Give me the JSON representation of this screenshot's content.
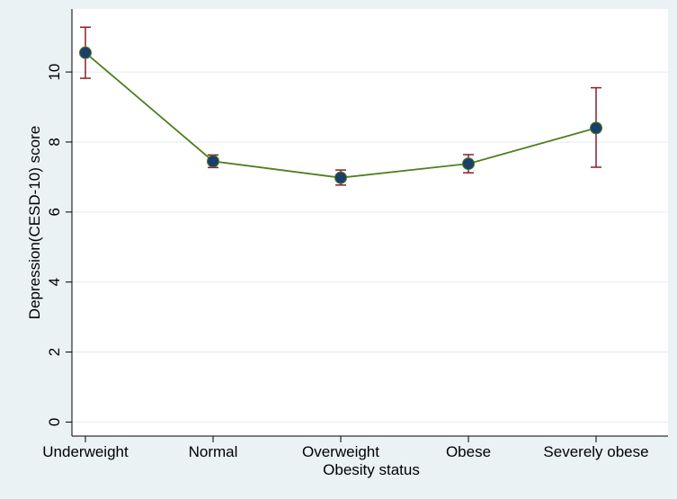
{
  "chart_data": {
    "type": "line",
    "xlabel": "Obesity status",
    "ylabel": "Depression(CESD-10) score",
    "categories": [
      "Underweight",
      "Normal",
      "Overweight",
      "Obese",
      "Severely obese"
    ],
    "series": [
      {
        "values": [
          10.55,
          7.45,
          6.98,
          7.38,
          8.4
        ],
        "ci_low": [
          9.82,
          7.27,
          6.77,
          7.12,
          7.28
        ],
        "ci_high": [
          11.28,
          7.63,
          7.2,
          7.64,
          9.55
        ]
      }
    ],
    "ylim": [
      -0.4,
      11.8
    ],
    "yticks": [
      0,
      2,
      4,
      6,
      8,
      10
    ],
    "grid": true,
    "colors": {
      "outer_background": "#EAF2F3",
      "plot_background": "#FFFFFF",
      "line": "#4F7F1F",
      "marker_fill": "#1B3F6B",
      "error_bar": "#8B1C2C",
      "grid": "#E3EAEC"
    }
  }
}
